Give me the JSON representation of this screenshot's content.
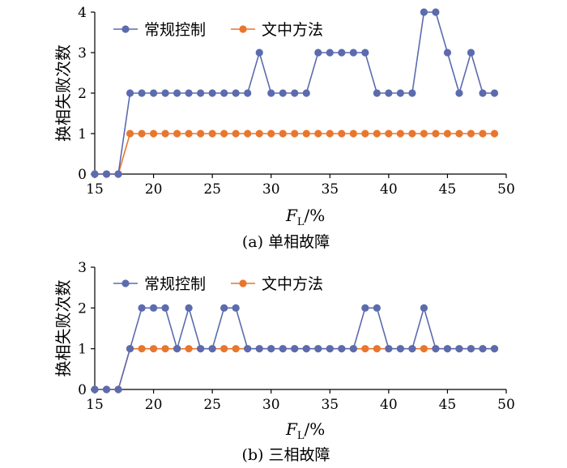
{
  "figure": {
    "colors": {
      "blue": "#5b6bae",
      "orange": "#e8762d",
      "axis": "#000000"
    }
  },
  "chart_data": [
    {
      "type": "line",
      "panel": "a",
      "caption": "(a)  单相故障",
      "xlabel": "F",
      "xlabel_sub": "L",
      "xlabel_suffix": "/%",
      "ylabel": "换相失败次数",
      "xlim": [
        15,
        50
      ],
      "ylim": [
        0,
        4
      ],
      "xticks": [
        "15",
        "20",
        "25",
        "30",
        "35",
        "40",
        "45",
        "50"
      ],
      "yticks": [
        "0",
        "1",
        "2",
        "3",
        "4"
      ],
      "legend_position": "top-left",
      "x": [
        15,
        16,
        17,
        18,
        19,
        20,
        21,
        22,
        23,
        24,
        25,
        26,
        27,
        28,
        29,
        30,
        31,
        32,
        33,
        34,
        35,
        36,
        37,
        38,
        39,
        40,
        41,
        42,
        43,
        44,
        45,
        46,
        47,
        48,
        49
      ],
      "series": [
        {
          "name": "常规控制",
          "color": "#5b6bae",
          "values": [
            0,
            0,
            0,
            2,
            2,
            2,
            2,
            2,
            2,
            2,
            2,
            2,
            2,
            2,
            3,
            2,
            2,
            2,
            2,
            3,
            3,
            3,
            3,
            3,
            2,
            2,
            2,
            2,
            4,
            4,
            3,
            2,
            3,
            2,
            2
          ]
        },
        {
          "name": "文中方法",
          "color": "#e8762d",
          "values": [
            0,
            0,
            0,
            1,
            1,
            1,
            1,
            1,
            1,
            1,
            1,
            1,
            1,
            1,
            1,
            1,
            1,
            1,
            1,
            1,
            1,
            1,
            1,
            1,
            1,
            1,
            1,
            1,
            1,
            1,
            1,
            1,
            1,
            1,
            1
          ]
        }
      ]
    },
    {
      "type": "line",
      "panel": "b",
      "caption": "(b)  三相故障",
      "xlabel": "F",
      "xlabel_sub": "L",
      "xlabel_suffix": "/%",
      "ylabel": "换相失败次数",
      "xlim": [
        15,
        50
      ],
      "ylim": [
        0,
        3
      ],
      "xticks": [
        "15",
        "20",
        "25",
        "30",
        "35",
        "40",
        "45",
        "50"
      ],
      "yticks": [
        "0",
        "1",
        "2",
        "3"
      ],
      "legend_position": "top-left",
      "x": [
        15,
        16,
        17,
        18,
        19,
        20,
        21,
        22,
        23,
        24,
        25,
        26,
        27,
        28,
        29,
        30,
        31,
        32,
        33,
        34,
        35,
        36,
        37,
        38,
        39,
        40,
        41,
        42,
        43,
        44,
        45,
        46,
        47,
        48,
        49
      ],
      "series": [
        {
          "name": "常规控制",
          "color": "#5b6bae",
          "values": [
            0,
            0,
            0,
            1,
            2,
            2,
            2,
            1,
            2,
            1,
            1,
            2,
            2,
            1,
            1,
            1,
            1,
            1,
            1,
            1,
            1,
            1,
            1,
            2,
            2,
            1,
            1,
            1,
            2,
            1,
            1,
            1,
            1,
            1,
            1
          ]
        },
        {
          "name": "文中方法",
          "color": "#e8762d",
          "values": [
            0,
            0,
            0,
            1,
            1,
            1,
            1,
            1,
            1,
            1,
            1,
            1,
            1,
            1,
            1,
            1,
            1,
            1,
            1,
            1,
            1,
            1,
            1,
            1,
            1,
            1,
            1,
            1,
            1,
            1,
            1,
            1,
            1,
            1,
            1
          ]
        }
      ]
    }
  ]
}
